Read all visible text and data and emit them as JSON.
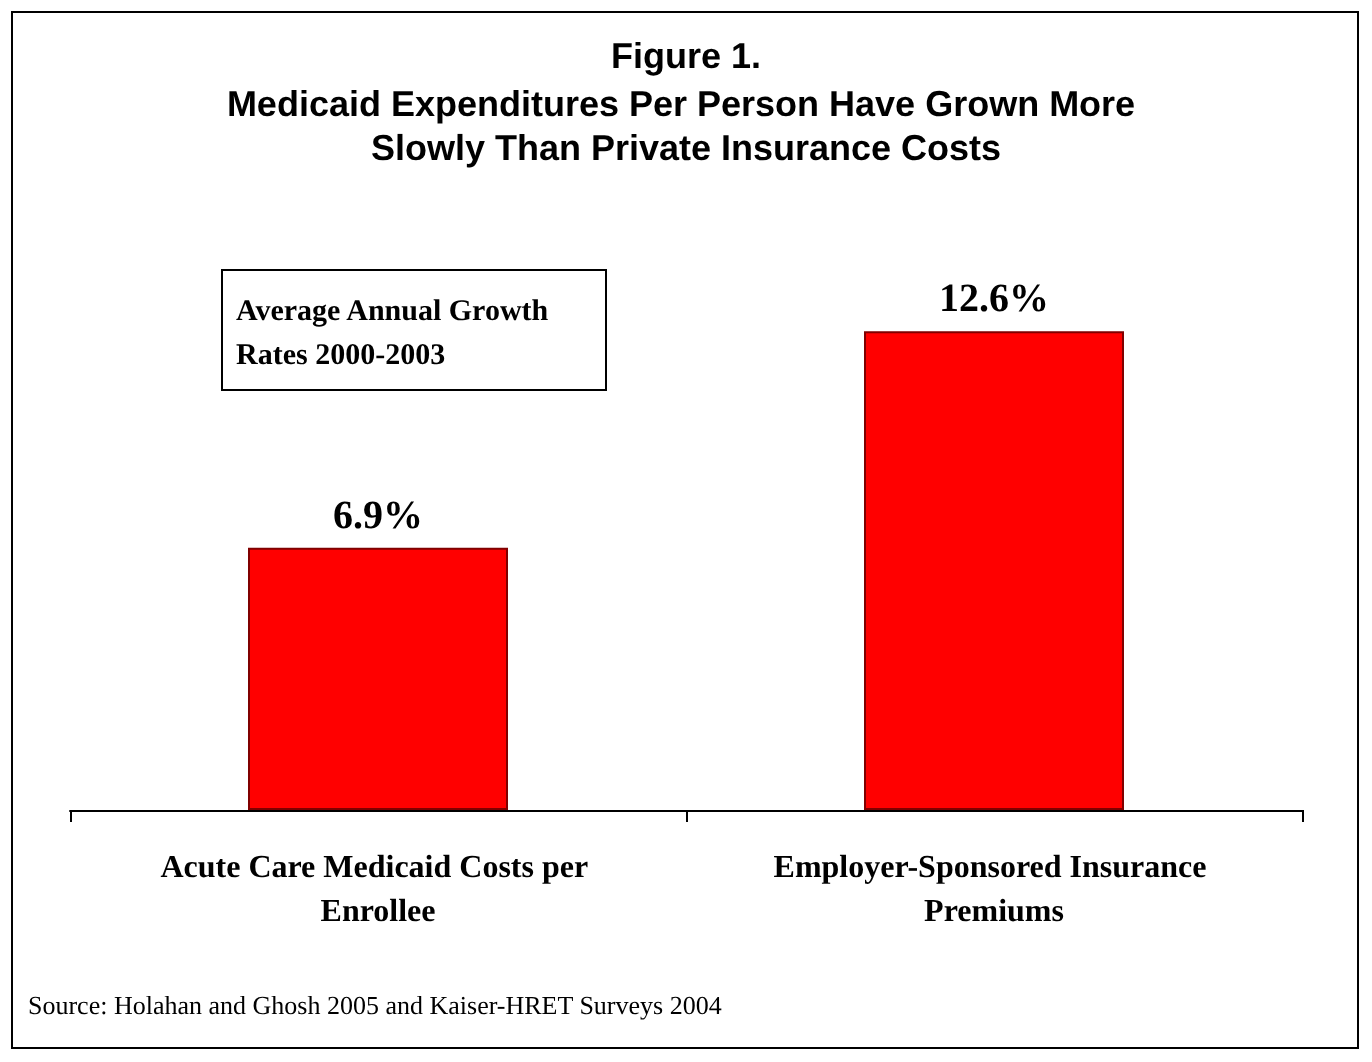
{
  "chart_data": {
    "type": "bar",
    "title": "Figure 1.",
    "subtitle": "Medicaid Expenditures Per Person Have Grown More Slowly Than Private Insurance Costs",
    "categories": [
      "Acute Care Medicaid Costs per Enrollee",
      "Employer-Sponsored Insurance Premiums"
    ],
    "values": [
      6.9,
      12.6
    ],
    "color": "#ff0000",
    "value_labels": [
      "6.9%",
      "12.6%"
    ],
    "annotations": [
      "Average Annual Growth Rates 2000-2003",
      "Source: Holahan and Ghosh 2005 and Kaiser-HRET Surveys 2004"
    ]
  }
}
